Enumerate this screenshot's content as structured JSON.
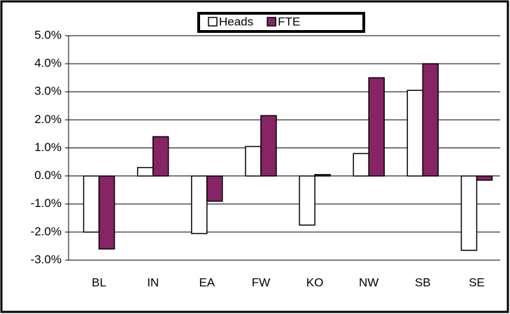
{
  "chart_data": {
    "type": "bar",
    "categories": [
      "BL",
      "IN",
      "EA",
      "FW",
      "KO",
      "NW",
      "SB",
      "SE"
    ],
    "series": [
      {
        "name": "Heads",
        "color": "#ffffff",
        "values": [
          -2.0,
          0.3,
          -2.05,
          1.05,
          -1.75,
          0.8,
          3.05,
          -2.65
        ]
      },
      {
        "name": "FTE",
        "color": "#862466",
        "values": [
          -2.6,
          1.4,
          -0.9,
          2.15,
          0.05,
          3.5,
          4.0,
          -0.15
        ]
      }
    ],
    "ylim": [
      -3,
      5
    ],
    "yticks": [
      {
        "value": -3,
        "label": "-3.0%"
      },
      {
        "value": -2,
        "label": "-2.0%"
      },
      {
        "value": -1,
        "label": "-1.0%"
      },
      {
        "value": 0,
        "label": "0.0%"
      },
      {
        "value": 1,
        "label": "1.0%"
      },
      {
        "value": 2,
        "label": "2.0%"
      },
      {
        "value": 3,
        "label": "3.0%"
      },
      {
        "value": 4,
        "label": "4.0%"
      },
      {
        "value": 5,
        "label": "5.0%"
      }
    ],
    "grid": true,
    "legend": "top"
  }
}
